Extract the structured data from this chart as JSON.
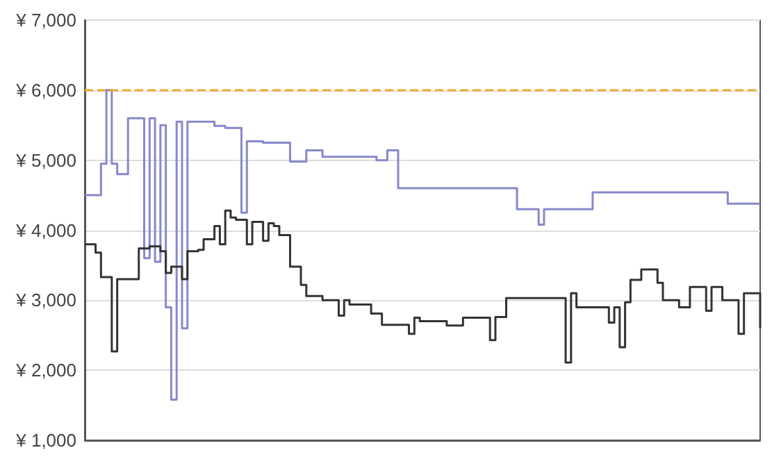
{
  "chart_data": {
    "type": "step",
    "categories": [
      null,
      null,
      null,
      null,
      null,
      null,
      null,
      null,
      null,
      null,
      null,
      null,
      null,
      null,
      null,
      null,
      null,
      null,
      null,
      null,
      null,
      null,
      null,
      null,
      null,
      null,
      null,
      null,
      null,
      null,
      null,
      null,
      null,
      null,
      null,
      null,
      null,
      null,
      null,
      null,
      null,
      null,
      null,
      null,
      null,
      null,
      null,
      null,
      null,
      null,
      null,
      null,
      null,
      null,
      null,
      null,
      null,
      null,
      null,
      null,
      null,
      null,
      null,
      null,
      null,
      null,
      null,
      null,
      null,
      null,
      null,
      null,
      null,
      null,
      null,
      null,
      null,
      null,
      null,
      null,
      null,
      null,
      null,
      null,
      null,
      null,
      null,
      null,
      null,
      null,
      null,
      null,
      null,
      null,
      null,
      null,
      null,
      null,
      null,
      null,
      null,
      null,
      null,
      null,
      null,
      null,
      null,
      null,
      null,
      null,
      null,
      null,
      null,
      null,
      null,
      null,
      null,
      null,
      null,
      null,
      null,
      null,
      null,
      null,
      null,
      null
    ],
    "ylim": [
      1000,
      7000
    ],
    "yticks": [
      {
        "value": 1000,
        "label": "¥ 1,000"
      },
      {
        "value": 2000,
        "label": "¥ 2,000"
      },
      {
        "value": 3000,
        "label": "¥ 3,000"
      },
      {
        "value": 4000,
        "label": "¥ 4,000"
      },
      {
        "value": 5000,
        "label": "¥ 5,000"
      },
      {
        "value": 6000,
        "label": "¥ 6,000"
      },
      {
        "value": 7000,
        "label": "¥ 7,000"
      }
    ],
    "tick_labels": "y",
    "grid": "y",
    "line_style": "solid",
    "ref_lines": [
      {
        "axis": "y",
        "value": 6000,
        "color": "#f0a830",
        "line_style": "dashed"
      }
    ],
    "series": [
      {
        "color": "#8888cc",
        "values": [
          4500,
          4500,
          4500,
          4950,
          6000,
          4950,
          4800,
          4800,
          5600,
          5600,
          5600,
          3600,
          5600,
          3550,
          5500,
          2900,
          1580,
          5550,
          2600,
          5550,
          5550,
          5550,
          5550,
          5550,
          5490,
          5490,
          5460,
          5460,
          5460,
          4250,
          5270,
          5270,
          5270,
          5250,
          5250,
          5250,
          5250,
          5250,
          4980,
          4980,
          4980,
          5140,
          5140,
          5140,
          5050,
          5050,
          5050,
          5050,
          5050,
          5050,
          5050,
          5050,
          5050,
          5050,
          5000,
          5000,
          5140,
          5140,
          4600,
          4600,
          4600,
          4600,
          4600,
          4600,
          4600,
          4600,
          4600,
          4600,
          4600,
          4600,
          4600,
          4600,
          4600,
          4600,
          4600,
          4600,
          4600,
          4600,
          4600,
          4600,
          4300,
          4300,
          4300,
          4300,
          4080,
          4300,
          4300,
          4300,
          4300,
          4300,
          4300,
          4300,
          4300,
          4300,
          4540,
          4540,
          4540,
          4540,
          4540,
          4540,
          4540,
          4540,
          4540,
          4540,
          4540,
          4540,
          4540,
          4540,
          4540,
          4540,
          4540,
          4540,
          4540,
          4540,
          4540,
          4540,
          4540,
          4540,
          4540,
          4380,
          4380,
          4380,
          4380,
          4380,
          4380,
          4380
        ]
      },
      {
        "color": "#333333",
        "values": [
          3800,
          3800,
          3680,
          3330,
          3330,
          2270,
          3300,
          3300,
          3300,
          3300,
          3740,
          3740,
          3770,
          3770,
          3700,
          3390,
          3480,
          3480,
          3300,
          3700,
          3700,
          3720,
          3870,
          3870,
          4060,
          3800,
          4280,
          4180,
          4150,
          4150,
          3800,
          4120,
          4120,
          3850,
          4100,
          4060,
          3930,
          3930,
          3480,
          3480,
          3220,
          3060,
          3060,
          3060,
          3000,
          3000,
          3000,
          2780,
          3000,
          2940,
          2940,
          2940,
          2940,
          2810,
          2810,
          2650,
          2650,
          2650,
          2650,
          2650,
          2520,
          2750,
          2700,
          2700,
          2700,
          2700,
          2700,
          2640,
          2640,
          2640,
          2750,
          2750,
          2750,
          2750,
          2750,
          2430,
          2760,
          2760,
          3030,
          3030,
          3030,
          3030,
          3030,
          3030,
          3030,
          3030,
          3030,
          3030,
          3030,
          2110,
          3100,
          2900,
          2900,
          2900,
          2900,
          2900,
          2900,
          2680,
          2900,
          2330,
          2970,
          3290,
          3290,
          3440,
          3440,
          3440,
          3250,
          3000,
          3000,
          3000,
          2900,
          2900,
          3190,
          3190,
          3190,
          2850,
          3190,
          3190,
          3000,
          3000,
          3000,
          2520,
          3100,
          3100,
          3100,
          2600
        ]
      }
    ]
  }
}
